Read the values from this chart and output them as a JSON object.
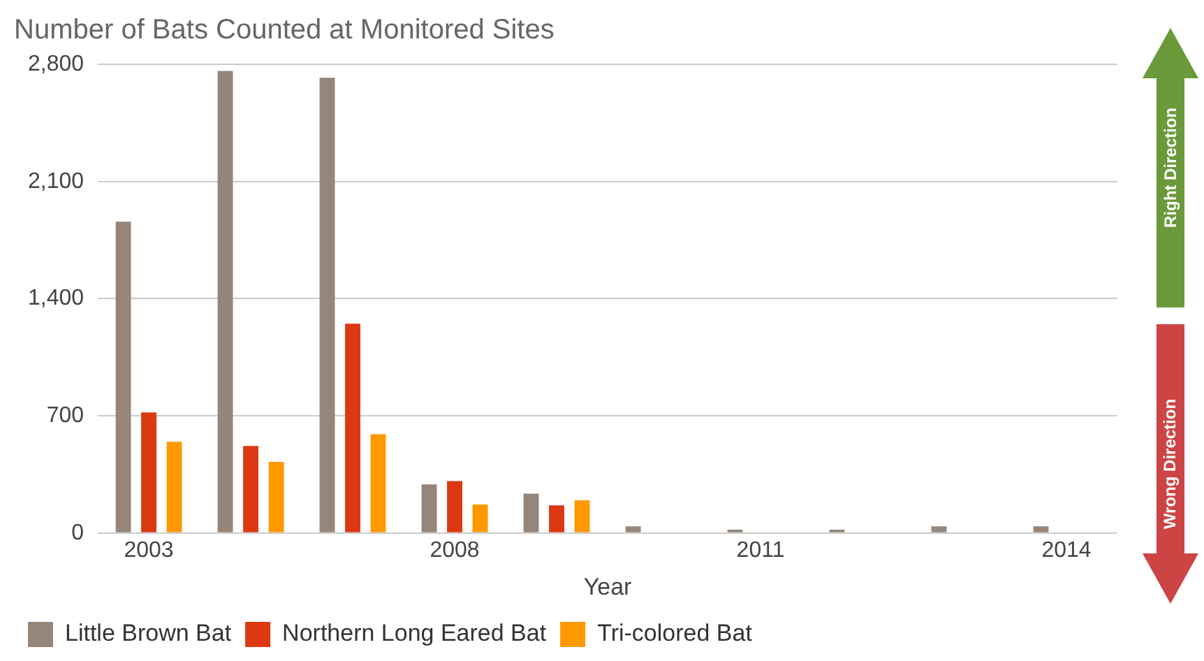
{
  "chart_data": {
    "type": "bar",
    "title": "Number of Bats Counted at Monitored Sites",
    "xlabel": "Year",
    "categories": [
      "2003",
      null,
      null,
      "2008",
      null,
      null,
      "2011",
      null,
      null,
      "2014"
    ],
    "series": [
      {
        "name": "Little Brown Bat",
        "color": "#968679",
        "values": [
          1860,
          2760,
          2720,
          290,
          235,
          40,
          20,
          20,
          40,
          40
        ]
      },
      {
        "name": "Northern Long Eared Bat",
        "color": "#dc3912",
        "values": [
          720,
          520,
          1250,
          310,
          165,
          null,
          null,
          null,
          null,
          null
        ]
      },
      {
        "name": "Tri-colored Bat",
        "color": "#ff9900",
        "values": [
          545,
          425,
          590,
          170,
          195,
          null,
          null,
          null,
          null,
          null
        ]
      }
    ],
    "ylim": [
      0,
      2800
    ],
    "yticks": [
      0,
      {
        "value": 700,
        "label": "700"
      },
      {
        "value": 1400,
        "label": "1,400"
      },
      {
        "value": 2100,
        "label": "2,100"
      },
      {
        "value": 2800,
        "label": "2,800"
      }
    ],
    "grid": "y",
    "legend": "bottom",
    "annotations": [
      "Right Direction",
      "Wrong Direction"
    ]
  }
}
